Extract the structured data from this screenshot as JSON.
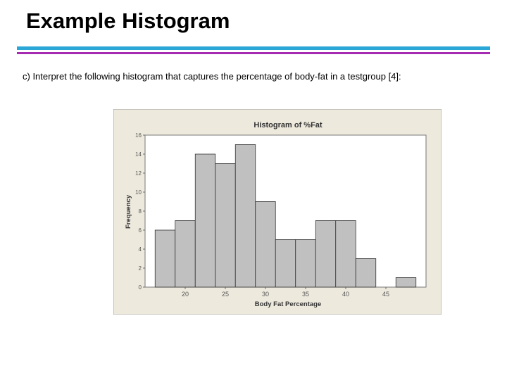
{
  "slide": {
    "title": "Example Histogram",
    "question": "c) Interpret the following histogram that captures the percentage of body-fat in a testgroup [4]:",
    "rule_colors": [
      "#2aa7d6",
      "#a52bb2"
    ]
  },
  "chart_data": {
    "type": "bar",
    "title": "Histogram of %Fat",
    "xlabel": "Body Fat Percentage",
    "ylabel": "Frequency",
    "bin_width": 2.5,
    "bins": [
      {
        "start": 16.25,
        "end": 18.75,
        "count": 6
      },
      {
        "start": 18.75,
        "end": 21.25,
        "count": 7
      },
      {
        "start": 21.25,
        "end": 23.75,
        "count": 14
      },
      {
        "start": 23.75,
        "end": 26.25,
        "count": 13
      },
      {
        "start": 26.25,
        "end": 28.75,
        "count": 15
      },
      {
        "start": 28.75,
        "end": 31.25,
        "count": 9
      },
      {
        "start": 31.25,
        "end": 33.75,
        "count": 5
      },
      {
        "start": 33.75,
        "end": 36.25,
        "count": 5
      },
      {
        "start": 36.25,
        "end": 38.75,
        "count": 7
      },
      {
        "start": 38.75,
        "end": 41.25,
        "count": 7
      },
      {
        "start": 41.25,
        "end": 43.75,
        "count": 3
      },
      {
        "start": 43.75,
        "end": 46.25,
        "count": 0
      },
      {
        "start": 46.25,
        "end": 48.75,
        "count": 1
      }
    ],
    "xticks": [
      "20",
      "25",
      "30",
      "35",
      "40",
      "45"
    ],
    "yticks": [
      "0",
      "2",
      "4",
      "6",
      "8",
      "10",
      "12",
      "14",
      "16"
    ],
    "xlim": [
      15,
      50
    ],
    "ylim": [
      0,
      16
    ],
    "grid": false,
    "colors": {
      "frame_background": "#ede9dd",
      "plot_background": "#ffffff",
      "bar_fill": "#c0c0c0",
      "bar_edge": "#333333"
    }
  }
}
